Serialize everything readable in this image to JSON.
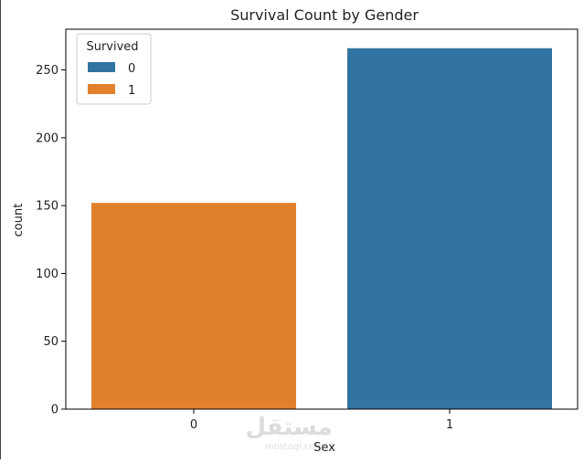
{
  "chart_data": {
    "type": "bar",
    "title": "Survival Count by Gender",
    "xlabel": "Sex",
    "ylabel": "count",
    "categories": [
      "0",
      "1"
    ],
    "series": [
      {
        "name": "0",
        "values": [
          0,
          266
        ],
        "color": "#3274a1"
      },
      {
        "name": "1",
        "values": [
          152,
          0
        ],
        "color": "#e1812c"
      }
    ],
    "ylim": [
      0,
      280
    ],
    "yticks": [
      0,
      50,
      100,
      150,
      200,
      250
    ],
    "legend": {
      "title": "Survived",
      "entries": [
        "0",
        "1"
      ],
      "placement": "top-left"
    },
    "grid": false
  },
  "watermark": {
    "text": "مستقل",
    "subtext": "mostaql.com"
  }
}
